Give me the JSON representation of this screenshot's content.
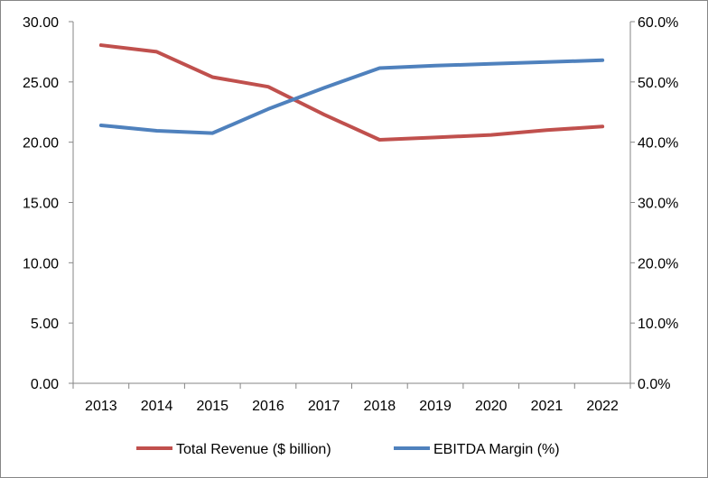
{
  "chart_data": {
    "type": "line",
    "categories": [
      "2013",
      "2014",
      "2015",
      "2016",
      "2017",
      "2018",
      "2019",
      "2020",
      "2021",
      "2022"
    ],
    "series": [
      {
        "name": "Total Revenue ($ billion)",
        "axis": "left",
        "color": "#C0504D",
        "values": [
          28.05,
          27.5,
          25.4,
          24.6,
          22.3,
          20.2,
          20.4,
          20.6,
          21.0,
          21.3
        ]
      },
      {
        "name": "EBITDA Margin (%)",
        "axis": "right",
        "color": "#4F81BD",
        "values": [
          42.8,
          41.9,
          41.5,
          45.5,
          49.0,
          52.3,
          52.7,
          53.0,
          53.3,
          53.6
        ]
      }
    ],
    "y_left": {
      "range": [
        0,
        30
      ],
      "ticks": [
        "0.00",
        "5.00",
        "10.00",
        "15.00",
        "20.00",
        "25.00",
        "30.00"
      ]
    },
    "y_right": {
      "range": [
        0,
        60
      ],
      "ticks": [
        "0.0%",
        "10.0%",
        "20.0%",
        "30.0%",
        "40.0%",
        "50.0%",
        "60.0%"
      ]
    },
    "grid": false,
    "legend": "bottom"
  }
}
